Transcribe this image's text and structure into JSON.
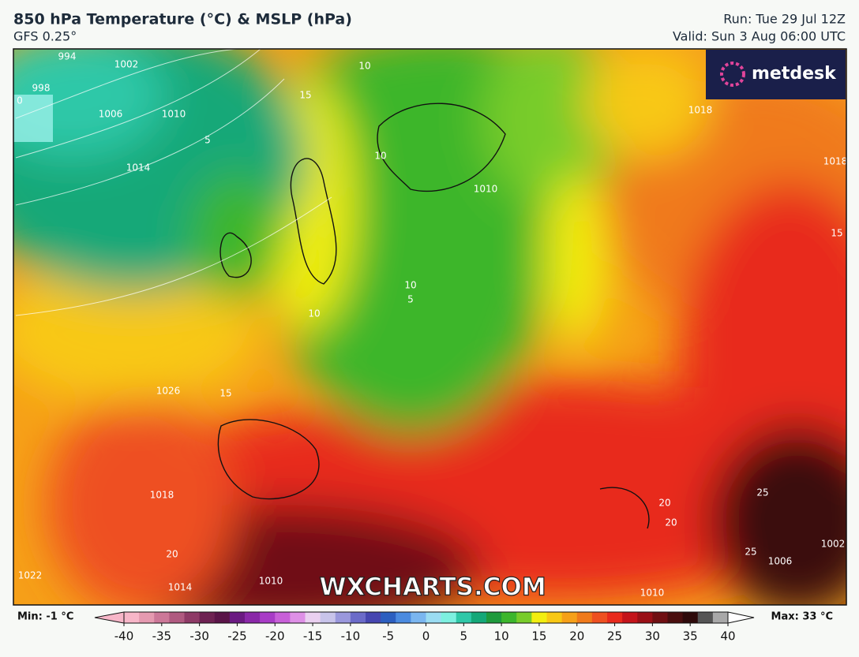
{
  "header": {
    "title": "850 hPa Temperature (°C) & MSLP (hPa)",
    "model": "GFS 0.25°",
    "run": "Run: Tue 29 Jul 12Z",
    "valid": "Valid: Sun 3 Aug 06:00 UTC"
  },
  "logo": "metdesk",
  "watermark": "WXCHARTS.COM",
  "map_labels": [
    "994",
    "998",
    "1002",
    "1006",
    "1010",
    "1014",
    "0",
    "5",
    "10",
    "15",
    "10",
    "10",
    "1010",
    "1018",
    "1018",
    "15",
    "10",
    "5",
    "1026",
    "15",
    "1018",
    "20",
    "1022",
    "1014",
    "1010",
    "20",
    "20",
    "25",
    "25",
    "1006",
    "1002",
    "1010"
  ],
  "colorbar": {
    "min_label": "Min: -1 °C",
    "max_label": "Max: 33 °C",
    "range": [
      -40,
      40
    ],
    "ticks": [
      -40,
      -35,
      -30,
      -25,
      -20,
      -15,
      -10,
      -5,
      0,
      5,
      10,
      15,
      20,
      25,
      30,
      35,
      40
    ],
    "colors": [
      "#f7b6c8",
      "#e59ab0",
      "#cc7898",
      "#b05a80",
      "#8e3a66",
      "#6e2252",
      "#5a1448",
      "#6b1a82",
      "#8a28a8",
      "#a83cc6",
      "#c860d8",
      "#de90e6",
      "#ead0f0",
      "#c8c4ea",
      "#9a98dc",
      "#6b6bc9",
      "#4646b0",
      "#2c5fc0",
      "#4b8be0",
      "#7ab6f0",
      "#9adcf2",
      "#7df0e0",
      "#2fc8a8",
      "#14a878",
      "#1e9a3c",
      "#3cb62c",
      "#78cc2a",
      "#f2ee10",
      "#f8c814",
      "#f6a018",
      "#f07a1a",
      "#ee5020",
      "#e82a1c",
      "#c4141a",
      "#9a1016",
      "#701012",
      "#4a0e0e",
      "#2e0a0a",
      "#555555",
      "#a8a8a8"
    ]
  }
}
